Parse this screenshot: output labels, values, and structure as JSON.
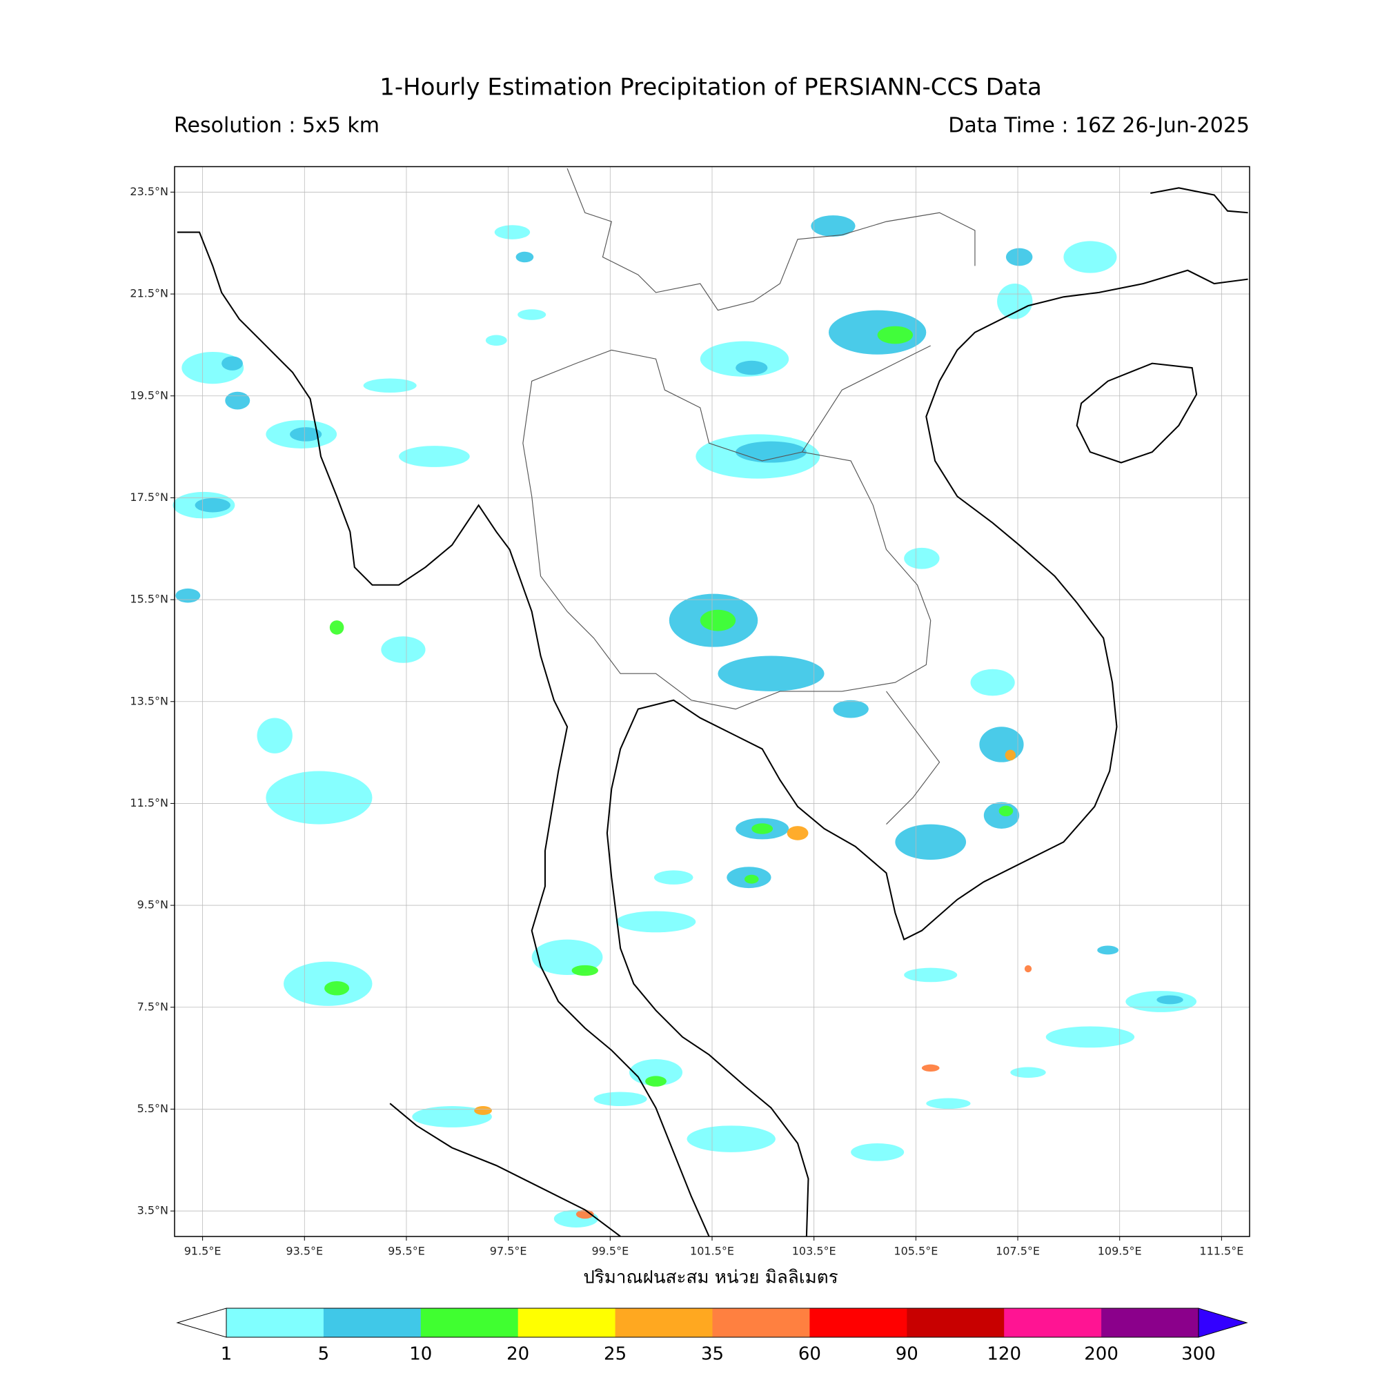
{
  "header": {
    "title": "1-Hourly Estimation Precipitation of PERSIANN-CCS Data",
    "resolution": "Resolution : 5x5 km",
    "data_time": "Data Time : 16Z 26-Jun-2025"
  },
  "map": {
    "lonlim": [
      90.95,
      112.05
    ],
    "latlim": [
      3.0,
      24.0
    ],
    "grid": true,
    "xlabel": "ปริมาณฝนสะสม หน่วย มิลลิเมตร",
    "lon_ticks": [
      {
        "value": 91.5,
        "label": "91.5°E"
      },
      {
        "value": 93.5,
        "label": "93.5°E"
      },
      {
        "value": 95.5,
        "label": "95.5°E"
      },
      {
        "value": 97.5,
        "label": "97.5°E"
      },
      {
        "value": 99.5,
        "label": "99.5°E"
      },
      {
        "value": 101.5,
        "label": "101.5°E"
      },
      {
        "value": 103.5,
        "label": "103.5°E"
      },
      {
        "value": 105.5,
        "label": "105.5°E"
      },
      {
        "value": 107.5,
        "label": "107.5°E"
      },
      {
        "value": 109.5,
        "label": "109.5°E"
      },
      {
        "value": 111.5,
        "label": "111.5°E"
      }
    ],
    "lat_ticks": [
      {
        "value": 3.5,
        "label": "3.5°N"
      },
      {
        "value": 5.5,
        "label": "5.5°N"
      },
      {
        "value": 7.5,
        "label": "7.5°N"
      },
      {
        "value": 9.5,
        "label": "9.5°N"
      },
      {
        "value": 11.5,
        "label": "11.5°N"
      },
      {
        "value": 13.5,
        "label": "13.5°N"
      },
      {
        "value": 15.5,
        "label": "15.5°N"
      },
      {
        "value": 17.5,
        "label": "17.5°N"
      },
      {
        "value": 19.5,
        "label": "19.5°N"
      },
      {
        "value": 21.5,
        "label": "21.5°N"
      },
      {
        "value": 23.5,
        "label": "23.5°N"
      }
    ]
  },
  "colorbar": {
    "levels": [
      1,
      5,
      10,
      20,
      25,
      35,
      60,
      90,
      120,
      200,
      300
    ],
    "colors": [
      "#80ffff",
      "#40c8e8",
      "#40ff30",
      "#ffff00",
      "#ffa820",
      "#ff8040",
      "#ff0000",
      "#c80000",
      "#ff1493",
      "#8b008b"
    ],
    "under_color": "#ffffff",
    "over_color": "#3300ff"
  }
}
